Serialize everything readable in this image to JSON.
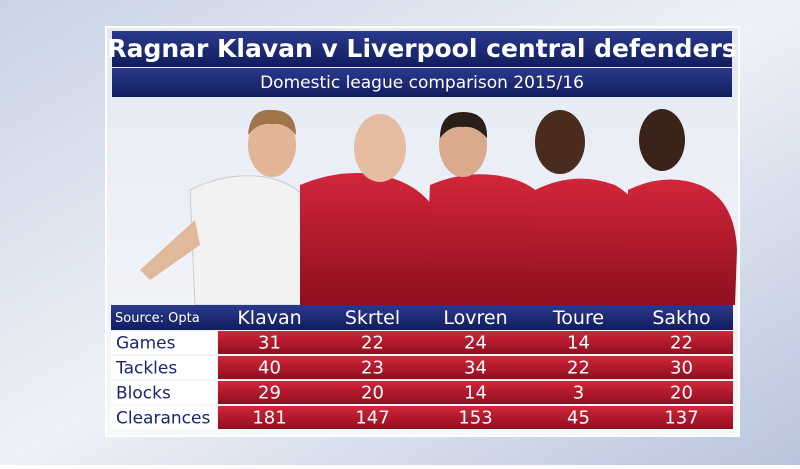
{
  "header": {
    "title": "Ragnar Klavan v Liverpool central defenders",
    "subtitle": "Domestic league comparison 2015/16"
  },
  "table": {
    "source": "Source: Opta",
    "columns": [
      "Klavan",
      "Skrtel",
      "Lovren",
      "Toure",
      "Sakho"
    ],
    "rows": [
      {
        "label": "Games",
        "values": [
          31,
          22,
          24,
          14,
          22
        ]
      },
      {
        "label": "Tackles",
        "values": [
          40,
          23,
          34,
          22,
          30
        ]
      },
      {
        "label": "Blocks",
        "values": [
          29,
          20,
          14,
          3,
          20
        ]
      },
      {
        "label": "Clearances",
        "values": [
          181,
          147,
          153,
          45,
          137
        ]
      }
    ]
  }
}
